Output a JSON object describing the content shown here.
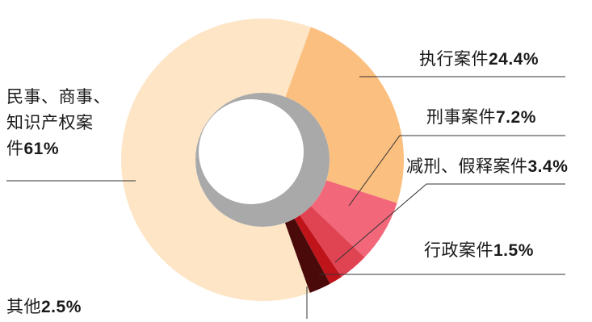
{
  "chart_data": {
    "type": "pie",
    "variant": "donut",
    "title": "",
    "slices": [
      {
        "label": "民事、商事、知识产权案件",
        "value": 61,
        "value_text": "61%",
        "color": "#fde5c6"
      },
      {
        "label": "执行案件",
        "value": 24.4,
        "value_text": "24.4%",
        "color": "#fbbf7f"
      },
      {
        "label": "刑事案件",
        "value": 7.2,
        "value_text": "7.2%",
        "color": "#f2687a"
      },
      {
        "label": "减刑、假释案件",
        "value": 3.4,
        "value_text": "3.4%",
        "color": "#e04453"
      },
      {
        "label": "行政案件",
        "value": 1.5,
        "value_text": "1.5%",
        "color": "#c0141b"
      },
      {
        "label": "其他",
        "value": 2.5,
        "value_text": "2.5%",
        "color": "#4a0a0a"
      }
    ],
    "legend": "none",
    "hole_color": "#a9a9a9"
  },
  "labels": {
    "civil_line1": "民事、商事、",
    "civil_line2": "知识产权案",
    "civil_line3": "件",
    "civil_pct": "61%",
    "exec": "执行案件",
    "exec_pct": "24.4%",
    "criminal": "刑事案件",
    "criminal_pct": "7.2%",
    "commutation": "减刑、假释案件",
    "commutation_pct": "3.4%",
    "admin": "行政案件",
    "admin_pct": "1.5%",
    "other": "其他",
    "other_pct": "2.5%"
  }
}
